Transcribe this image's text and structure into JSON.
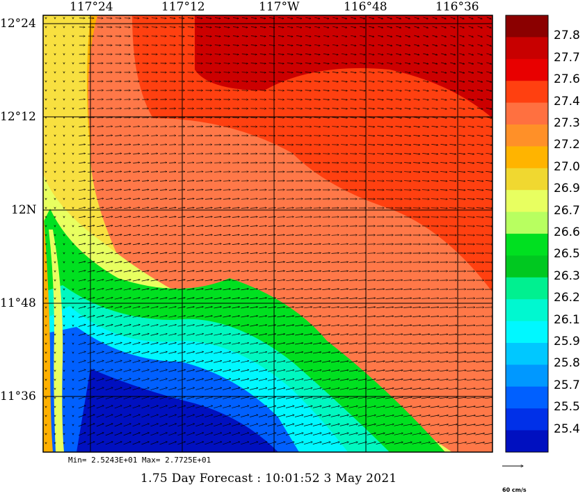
{
  "map": {
    "lon_ticks": [
      "117°24",
      "117°12",
      "117°W",
      "116°48",
      "116°36"
    ],
    "lat_ticks": [
      "12°24",
      "12°12",
      "12N",
      "11°48",
      "11°36"
    ],
    "colors": {
      "very_hot": "#8b0000",
      "hot": "#cc0000",
      "warm_orange": "#ff4010",
      "salmon": "#ff7848",
      "amber": "#ffb000",
      "yellow": "#f8e040",
      "lime": "#e8ff60",
      "green": "#00e020",
      "teal": "#00f8c0",
      "cyan": "#00f8ff",
      "blue": "#0060ff",
      "deep_blue": "#0010c0"
    }
  },
  "legend": {
    "title": "",
    "values": [
      "27.8",
      "27.7",
      "27.6",
      "27.4",
      "27.3",
      "27.2",
      "27.0",
      "26.9",
      "26.7",
      "26.6",
      "26.5",
      "26.3",
      "26.2",
      "26.1",
      "25.9",
      "25.8",
      "25.7",
      "25.5",
      "25.4"
    ],
    "swatches": [
      "#8b0000",
      "#c80000",
      "#e80000",
      "#ff4010",
      "#ff7040",
      "#ff9028",
      "#ffb400",
      "#f0d830",
      "#e8ff60",
      "#b8ff60",
      "#00e020",
      "#00c820",
      "#00f090",
      "#00f8d0",
      "#00f8ff",
      "#00c8ff",
      "#0098ff",
      "#0060ff",
      "#0030e8",
      "#0010c0"
    ]
  },
  "stats": {
    "text": "Min= 2.5243E+01  Max= 2.7725E+01"
  },
  "footer": {
    "text": "1.75 Day Forecast : 10:01:52   3 May 2021"
  },
  "scale": {
    "label": "60 cm/s"
  }
}
